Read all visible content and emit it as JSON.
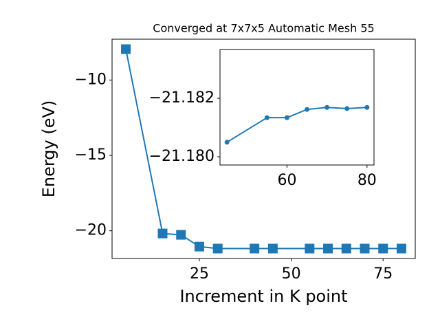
{
  "chart_data": [
    {
      "type": "line",
      "title": "Converged at 7x7x5 Automatic Mesh 55",
      "x_label": "Increment in K point",
      "y_label": "Energy (eV)",
      "x": [
        5,
        15,
        20,
        25,
        30,
        40,
        45,
        55,
        60,
        65,
        70,
        75,
        80
      ],
      "series": [
        {
          "name": "Energy",
          "color": "#1f77b4",
          "marker": "square",
          "values": [
            -7.95,
            -20.18,
            -20.27,
            -21.05,
            -21.18,
            -21.18,
            -21.18,
            -21.18,
            -21.18,
            -21.18,
            -21.18,
            -21.18,
            -21.18
          ]
        }
      ],
      "xlim": [
        1.25,
        83.75
      ],
      "ylim": [
        -21.84,
        -7.29
      ],
      "xticks": [
        25,
        50,
        75
      ],
      "yticks": [
        {
          "value": -10,
          "label": "−10"
        },
        {
          "value": -15,
          "label": "−15"
        },
        {
          "value": -20,
          "label": "−20"
        }
      ]
    },
    {
      "type": "line",
      "x": [
        45,
        55,
        60,
        65,
        70,
        75,
        80
      ],
      "series": [
        {
          "name": "Energy",
          "color": "#1f77b4",
          "marker": "circle",
          "values": [
            -21.1805,
            -21.18134,
            -21.18134,
            -21.18162,
            -21.18169,
            -21.18165,
            -21.18169
          ]
        }
      ],
      "xlim": [
        43.25,
        81.75
      ],
      "ylim": [
        -21.17972,
        -21.18367
      ],
      "xticks": [
        60,
        80
      ],
      "yticks": [
        {
          "value": -21.182,
          "label": "−21.182"
        },
        {
          "value": -21.18,
          "label": "−21.180"
        }
      ]
    }
  ]
}
